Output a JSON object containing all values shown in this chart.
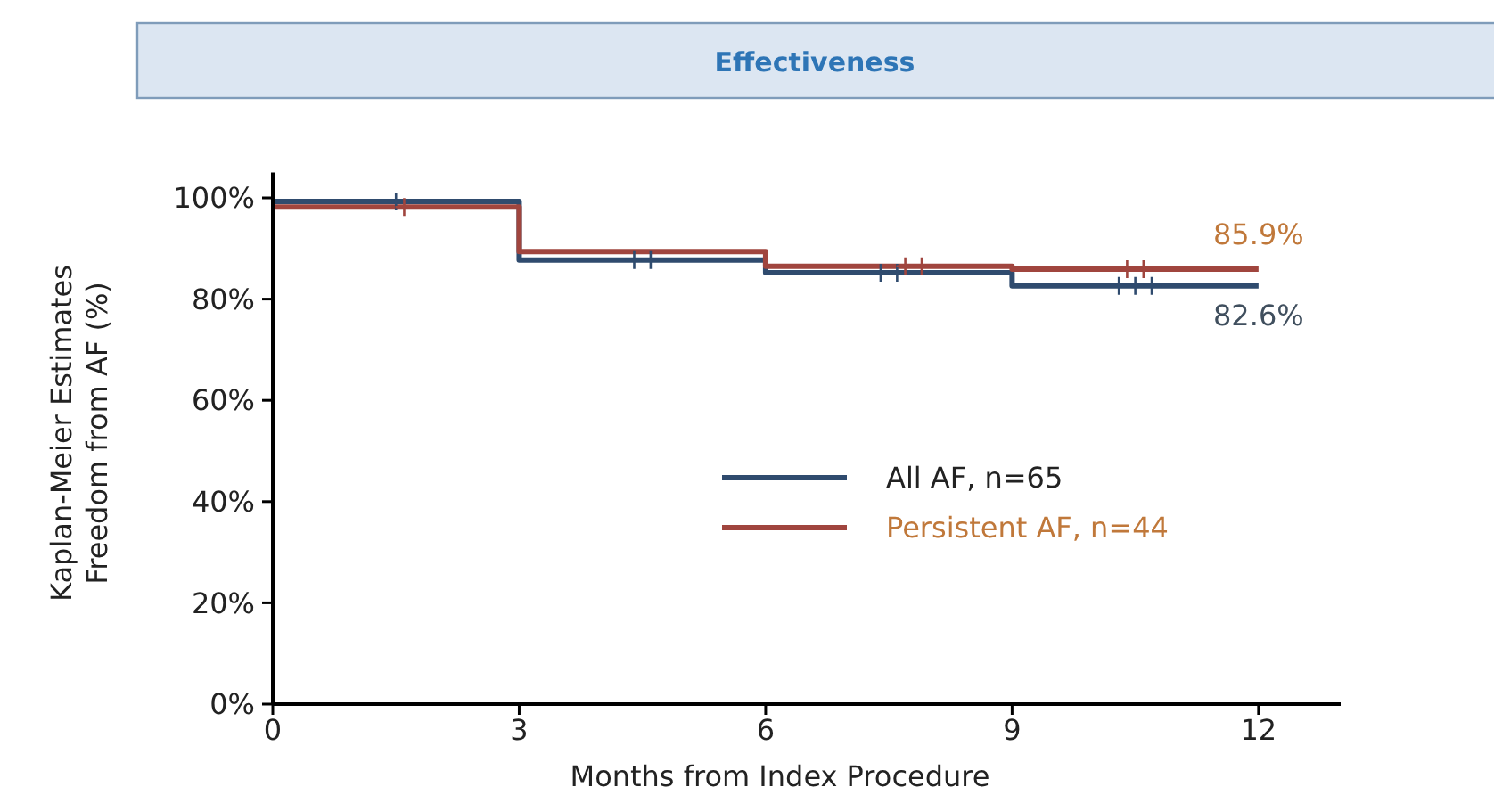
{
  "chart_data": {
    "type": "step",
    "title": "Effectiveness",
    "xlabel": "Months from Index Procedure",
    "ylabel": "Kaplan-Meier Estimates\nFreedom from AF (%)",
    "xlim": [
      0,
      13
    ],
    "ylim": [
      0,
      105
    ],
    "xticks": [
      0,
      3,
      6,
      9,
      12
    ],
    "yticks": [
      {
        "value": 0,
        "label": "0%"
      },
      {
        "value": 20,
        "label": "20%"
      },
      {
        "value": 40,
        "label": "40%"
      },
      {
        "value": 60,
        "label": "60%"
      },
      {
        "value": 80,
        "label": "80%"
      },
      {
        "value": 100,
        "label": "100%"
      }
    ],
    "grid": false,
    "legend": "center",
    "series": [
      {
        "name": "All AF, n=65",
        "color": "#2f4b6e",
        "x": [
          0,
          3,
          6,
          9,
          12
        ],
        "values": [
          99.3,
          87.7,
          85.2,
          82.6,
          82.6
        ]
      },
      {
        "name": "Persistent AF, n=44",
        "color": "#a0453e",
        "x": [
          0,
          3,
          6,
          9,
          12
        ],
        "values": [
          98.2,
          89.4,
          86.5,
          85.9,
          85.9
        ]
      },
      {
        "type": "scatter",
        "marker": "cross",
        "color": "#2f4b6e",
        "x": [
          1.5,
          4.4,
          4.6,
          7.4,
          7.6,
          10.3,
          10.5,
          10.7
        ],
        "values": [
          99.3,
          87.7,
          87.7,
          85.2,
          85.2,
          82.6,
          82.6,
          82.6
        ]
      },
      {
        "type": "scatter",
        "marker": "cross",
        "color": "#a0453e",
        "x": [
          1.6,
          7.7,
          7.9,
          10.4,
          10.6
        ],
        "values": [
          98.2,
          86.5,
          86.5,
          85.9,
          85.9
        ]
      }
    ],
    "annotations": [
      {
        "text": "85.9%",
        "x": 12,
        "y": 85.9
      },
      {
        "text": "82.6%",
        "x": 12,
        "y": 82.6
      }
    ]
  }
}
